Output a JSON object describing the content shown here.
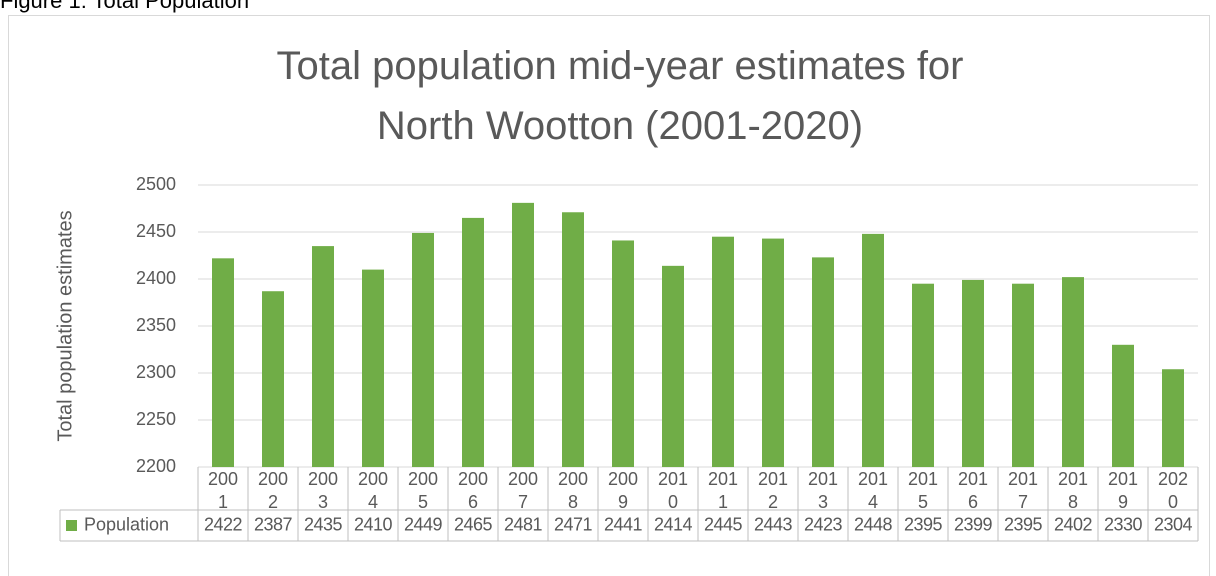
{
  "figure_label": "Figure 1: Total Population",
  "chart_data": {
    "type": "bar",
    "title": "Total population mid-year estimates for North Wootton (2001-2020)",
    "y_label": "Total population estimates",
    "categories": [
      "2001",
      "2002",
      "2003",
      "2004",
      "2005",
      "2006",
      "2007",
      "2008",
      "2009",
      "2010",
      "2011",
      "2012",
      "2013",
      "2014",
      "2015",
      "2016",
      "2017",
      "2018",
      "2019",
      "2020"
    ],
    "series": [
      {
        "name": "Population",
        "color": "#70ad47",
        "values": [
          2422,
          2387,
          2435,
          2410,
          2449,
          2465,
          2481,
          2471,
          2441,
          2414,
          2445,
          2443,
          2423,
          2448,
          2395,
          2399,
          2395,
          2402,
          2330,
          2304
        ]
      }
    ],
    "ylim": [
      2200,
      2500
    ],
    "yticks": [
      2200,
      2250,
      2300,
      2350,
      2400,
      2450,
      2500
    ],
    "grid": true
  }
}
